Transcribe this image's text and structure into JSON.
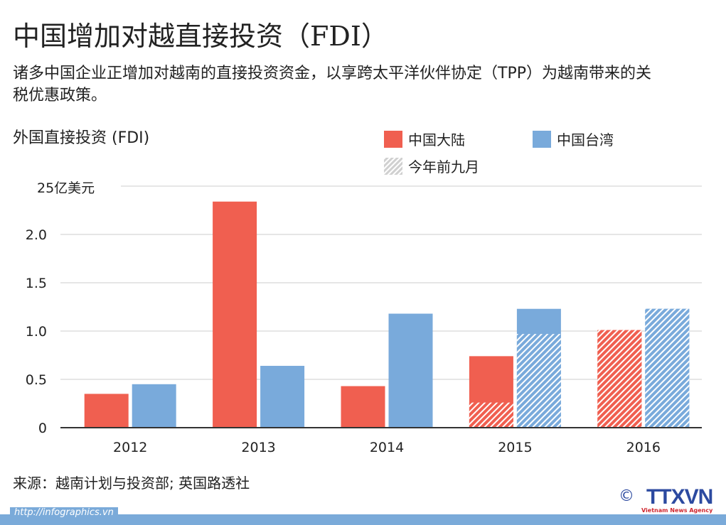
{
  "title": "中国增加对越直接投资（FDI）",
  "subtitle": "诸多中国企业正增加对越南的直接投资资金，以享跨太平洋伙伴协定（TPP）为越南带来的关税优惠政策。",
  "source": "来源：越南计划与投资部; 英国路透社",
  "footer_url": "http://infographics.vn",
  "logo": {
    "copyright": "©",
    "name": "TTXVN",
    "tagline": "Vietnam News Agency"
  },
  "colors": {
    "mainland": "#f05f50",
    "taiwan": "#79aadb",
    "axis": "#333333",
    "grid": "#cccccc"
  },
  "chart_data": {
    "type": "bar",
    "ylabel": "外国直接投资 (FDI)",
    "yunit_label": "25亿美元",
    "ylim": [
      0,
      2.5
    ],
    "yticks": [
      "0",
      "0.5",
      "1.0",
      "1.5",
      "2.0"
    ],
    "ytick_values": [
      0,
      0.5,
      1.0,
      1.5,
      2.0
    ],
    "grid": true,
    "legend_position": "top-right",
    "categories": [
      "2012",
      "2013",
      "2014",
      "2015",
      "2016"
    ],
    "series": [
      {
        "name": "中国大陆",
        "values": [
          0.35,
          2.34,
          0.43,
          0.74,
          1.01
        ],
        "first_nine_months": [
          null,
          null,
          null,
          0.26,
          1.01
        ]
      },
      {
        "name": "中国台湾",
        "values": [
          0.45,
          0.64,
          1.18,
          1.23,
          1.23
        ],
        "first_nine_months": [
          null,
          null,
          null,
          0.97,
          1.23
        ]
      }
    ],
    "hatch_legend": "今年前九月"
  }
}
